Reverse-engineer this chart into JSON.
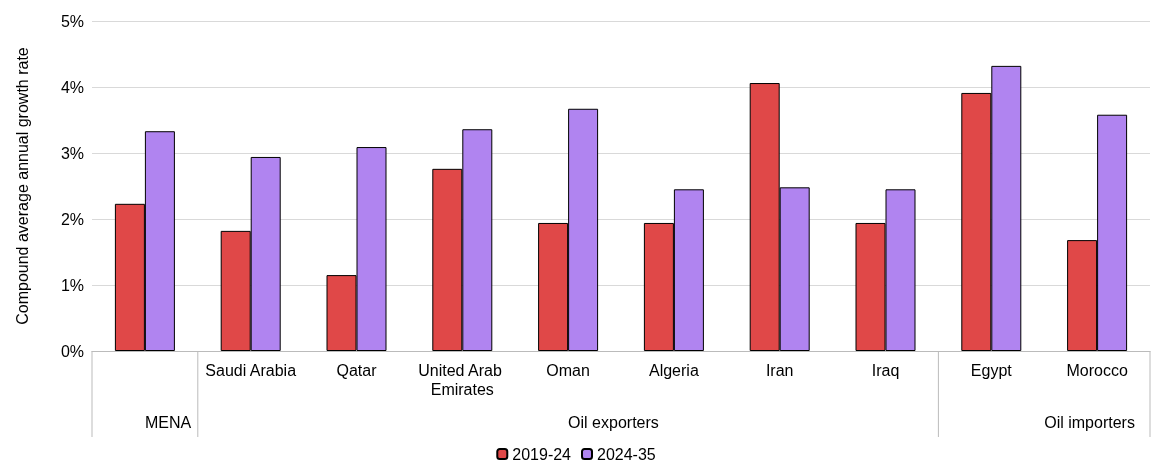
{
  "chart_data": {
    "type": "bar",
    "ylabel": "Compound average annual growth rate",
    "categories": [
      null,
      "Saudi Arabia",
      "Qatar",
      "United Arab Emirates",
      "Oman",
      "Algeria",
      "Iran",
      "Iraq",
      "Egypt",
      "Morocco"
    ],
    "series": [
      {
        "name": "2019-24",
        "color": "#e04848",
        "values": [
          2.23,
          1.82,
          1.15,
          2.76,
          1.94,
          1.94,
          4.06,
          1.94,
          3.91,
          1.68
        ]
      },
      {
        "name": "2024-35",
        "color": "#b084f0",
        "values": [
          3.33,
          2.94,
          3.09,
          3.36,
          3.67,
          2.45,
          2.48,
          2.45,
          4.32,
          3.58
        ]
      }
    ],
    "ylim": [
      0,
      5
    ],
    "yticks": [
      {
        "value": 0,
        "label": "0%"
      },
      {
        "value": 1,
        "label": "1%"
      },
      {
        "value": 2,
        "label": "2%"
      },
      {
        "value": 3,
        "label": "3%"
      },
      {
        "value": 4,
        "label": "4%"
      },
      {
        "value": 5,
        "label": "5%"
      }
    ],
    "annotations": [
      "MENA",
      "Oil exporters",
      "Oil importers"
    ],
    "grid": "y",
    "legend": "bottom"
  }
}
